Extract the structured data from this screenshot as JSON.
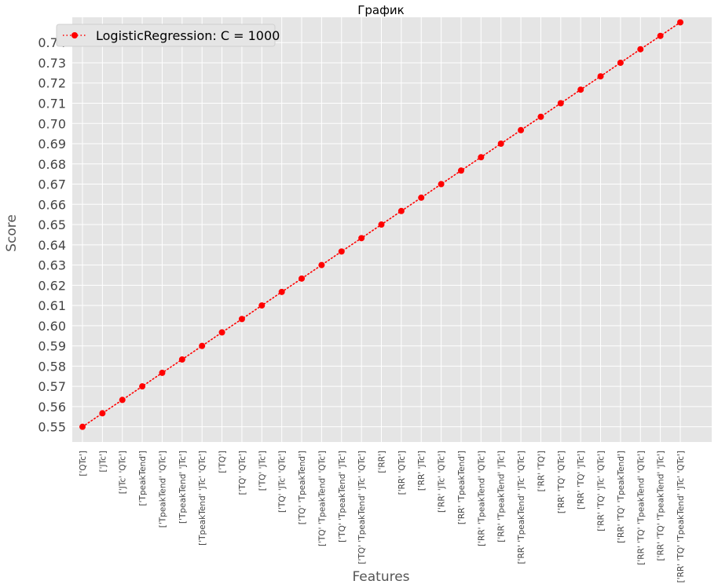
{
  "chart_data": {
    "type": "line",
    "title": "График",
    "xlabel": "Features",
    "ylabel": "Score",
    "ylim": [
      0.5425,
      0.7525
    ],
    "yticks": [
      "0.55",
      "0.56",
      "0.57",
      "0.58",
      "0.59",
      "0.60",
      "0.61",
      "0.62",
      "0.63",
      "0.64",
      "0.65",
      "0.66",
      "0.67",
      "0.68",
      "0.69",
      "0.70",
      "0.71",
      "0.72",
      "0.73",
      "0.74"
    ],
    "grid": true,
    "legend_position": "top-left",
    "categories": [
      "['QTc']",
      "['JTc']",
      "['JTc' 'QTc']",
      "['TpeakTend']",
      "['TpeakTend' 'QTc']",
      "['TpeakTend' 'JTc']",
      "['TpeakTend' 'JTc' 'QTc']",
      "['TQ']",
      "['TQ' 'QTc']",
      "['TQ' 'JTc']",
      "['TQ' 'JTc' 'QTc']",
      "['TQ' 'TpeakTend']",
      "['TQ' 'TpeakTend' 'QTc']",
      "['TQ' 'TpeakTend' 'JTc']",
      "['TQ' 'TpeakTend' 'JTc' 'QTc']",
      "['RR']",
      "['RR' 'QTc']",
      "['RR' 'JTc']",
      "['RR' 'JTc' 'QTc']",
      "['RR' 'TpeakTend']",
      "['RR' 'TpeakTend' 'QTc']",
      "['RR' 'TpeakTend' 'JTc']",
      "['RR' 'TpeakTend' 'JTc' 'QTc']",
      "['RR' 'TQ']",
      "['RR' 'TQ' 'QTc']",
      "['RR' 'TQ' 'JTc']",
      "['RR' 'TQ' 'JTc' 'QTc']",
      "['RR' 'TQ' 'TpeakTend']",
      "['RR' 'TQ' 'TpeakTend' 'QTc']",
      "['RR' 'TQ' 'TpeakTend' 'JTc']",
      "['RR' 'TQ' 'TpeakTend' 'JTc' 'QTc']"
    ],
    "series": [
      {
        "name": "LogisticRegression: C = 1000",
        "color": "#ff0000",
        "line_style": "dotted",
        "marker": "circle",
        "values": [
          0.55,
          0.5567,
          0.5633,
          0.57,
          0.5767,
          0.5833,
          0.59,
          0.5967,
          0.6033,
          0.61,
          0.6167,
          0.6233,
          0.63,
          0.6367,
          0.6433,
          0.65,
          0.6567,
          0.6633,
          0.67,
          0.6767,
          0.6833,
          0.69,
          0.6967,
          0.7033,
          0.71,
          0.7167,
          0.7233,
          0.73,
          0.7367,
          0.7433,
          0.75
        ]
      }
    ],
    "colors": {
      "plot_background": "#e5e5e5",
      "grid": "#ffffff",
      "series": "#ff0000"
    }
  }
}
